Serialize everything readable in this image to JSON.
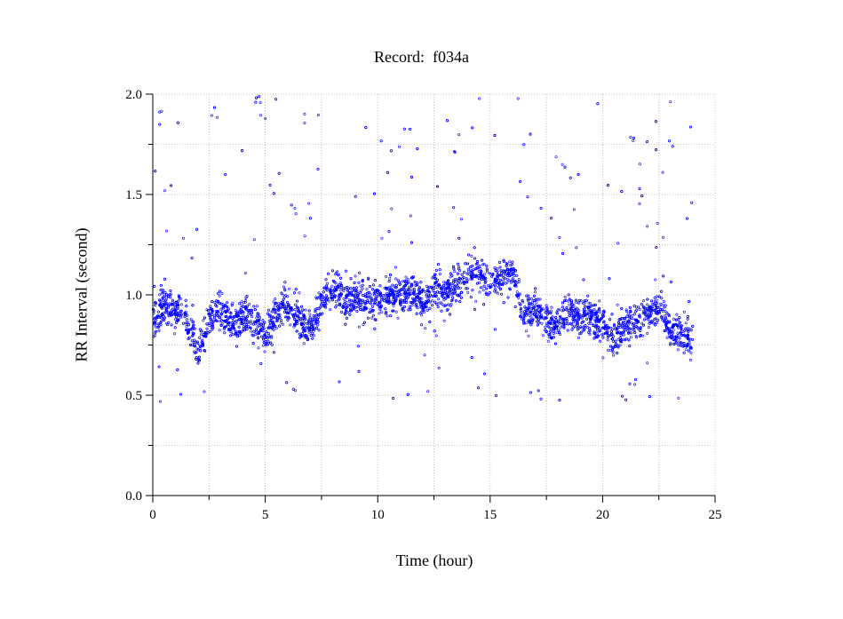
{
  "chart_data": {
    "type": "scatter",
    "title": "Record:  f034a",
    "xlabel": "Time (hour)",
    "ylabel": "RR Interval (second)",
    "xlim": [
      0,
      25
    ],
    "ylim": [
      0.0,
      2.0
    ],
    "x_ticks": [
      0,
      5,
      10,
      15,
      20,
      25
    ],
    "x_tick_labels": [
      "0",
      "5",
      "10",
      "15",
      "20",
      "25"
    ],
    "y_ticks": [
      0.0,
      0.5,
      1.0,
      1.5,
      2.0
    ],
    "y_tick_labels": [
      "0.0",
      "0.5",
      "1.0",
      "1.5",
      "2.0"
    ],
    "grid": true,
    "marker_color": "#0000ff",
    "series": [
      {
        "x": [
          0.0,
          0.5,
          1.0,
          1.5,
          2.0,
          2.5,
          3.0,
          3.5,
          4.0,
          4.5,
          5.0,
          5.5,
          6.0,
          6.5,
          7.0,
          7.5,
          8.0,
          8.5,
          9.0,
          9.5,
          10.0,
          10.5,
          11.0,
          11.5,
          12.0,
          12.5,
          13.0,
          13.5,
          14.0,
          14.5,
          15.0,
          15.5,
          16.0,
          16.5,
          17.0,
          17.5,
          18.0,
          18.5,
          19.0,
          19.5,
          20.0,
          20.5,
          21.0,
          21.5,
          22.0,
          22.5,
          23.0,
          23.5,
          24.0
        ],
        "y": [
          0.88,
          0.95,
          0.92,
          0.9,
          0.72,
          0.88,
          0.92,
          0.86,
          0.9,
          0.88,
          0.78,
          0.92,
          0.95,
          0.88,
          0.82,
          0.97,
          1.02,
          0.98,
          1.0,
          0.96,
          0.98,
          0.99,
          1.0,
          1.02,
          0.95,
          1.05,
          1.0,
          1.04,
          1.1,
          1.12,
          1.05,
          1.1,
          1.12,
          0.9,
          0.92,
          0.88,
          0.85,
          0.92,
          0.9,
          0.88,
          0.85,
          0.78,
          0.86,
          0.85,
          0.9,
          0.95,
          0.82,
          0.8,
          0.78
        ]
      }
    ]
  }
}
